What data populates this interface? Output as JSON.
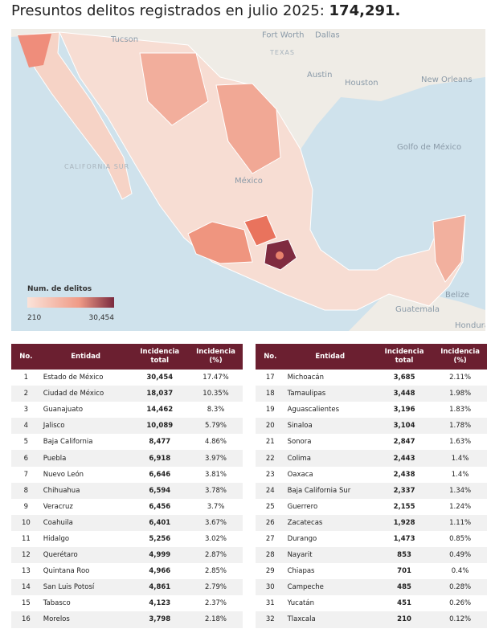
{
  "header": {
    "title": "Presuntos delitos registrados en julio 2025:",
    "total": "174,291."
  },
  "map": {
    "labels": [
      "Tucson",
      "Fort Worth",
      "Dallas",
      "TEXAS",
      "Austin",
      "Houston",
      "New Orleans",
      "Golfo de México",
      "México",
      "CALIFORNIA SUR",
      "Belize",
      "Guatemala",
      "Honduras"
    ],
    "legend": {
      "title": "Num. de delitos",
      "min": "210",
      "max": "30,454"
    }
  },
  "table": {
    "columns": [
      "No.",
      "Entidad",
      "Incidencia total",
      "Incidencia (%)"
    ],
    "rows": [
      [
        "1",
        "Estado de México",
        "30,454",
        "17.47%"
      ],
      [
        "2",
        "Ciudad de México",
        "18,037",
        "10.35%"
      ],
      [
        "3",
        "Guanajuato",
        "14,462",
        "8.3%"
      ],
      [
        "4",
        "Jalisco",
        "10,089",
        "5.79%"
      ],
      [
        "5",
        "Baja California",
        "8,477",
        "4.86%"
      ],
      [
        "6",
        "Puebla",
        "6,918",
        "3.97%"
      ],
      [
        "7",
        "Nuevo León",
        "6,646",
        "3.81%"
      ],
      [
        "8",
        "Chihuahua",
        "6,594",
        "3.78%"
      ],
      [
        "9",
        "Veracruz",
        "6,456",
        "3.7%"
      ],
      [
        "10",
        "Coahuila",
        "6,401",
        "3.67%"
      ],
      [
        "11",
        "Hidalgo",
        "5,256",
        "3.02%"
      ],
      [
        "12",
        "Querétaro",
        "4,999",
        "2.87%"
      ],
      [
        "13",
        "Quintana Roo",
        "4,966",
        "2.85%"
      ],
      [
        "14",
        "San Luis Potosí",
        "4,861",
        "2.79%"
      ],
      [
        "15",
        "Tabasco",
        "4,123",
        "2.37%"
      ],
      [
        "16",
        "Morelos",
        "3,798",
        "2.18%"
      ],
      [
        "17",
        "Michoacán",
        "3,685",
        "2.11%"
      ],
      [
        "18",
        "Tamaulipas",
        "3,448",
        "1.98%"
      ],
      [
        "19",
        "Aguascalientes",
        "3,196",
        "1.83%"
      ],
      [
        "20",
        "Sinaloa",
        "3,104",
        "1.78%"
      ],
      [
        "21",
        "Sonora",
        "2,847",
        "1.63%"
      ],
      [
        "22",
        "Colima",
        "2,443",
        "1.4%"
      ],
      [
        "23",
        "Oaxaca",
        "2,438",
        "1.4%"
      ],
      [
        "24",
        "Baja California Sur",
        "2,337",
        "1.34%"
      ],
      [
        "25",
        "Guerrero",
        "2,155",
        "1.24%"
      ],
      [
        "26",
        "Zacatecas",
        "1,928",
        "1.11%"
      ],
      [
        "27",
        "Durango",
        "1,473",
        "0.85%"
      ],
      [
        "28",
        "Nayarit",
        "853",
        "0.49%"
      ],
      [
        "29",
        "Chiapas",
        "701",
        "0.4%"
      ],
      [
        "30",
        "Campeche",
        "485",
        "0.28%"
      ],
      [
        "31",
        "Yucatán",
        "451",
        "0.26%"
      ],
      [
        "32",
        "Tlaxcala",
        "210",
        "0.12%"
      ]
    ]
  }
}
